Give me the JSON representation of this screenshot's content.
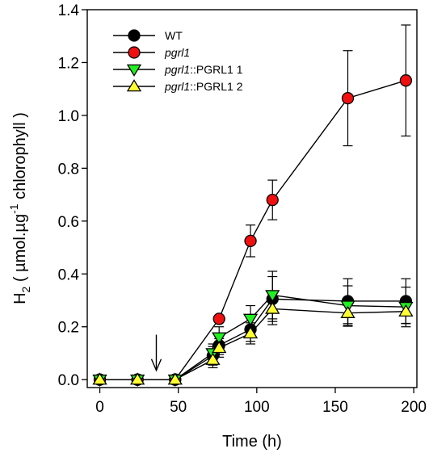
{
  "chart_data": {
    "type": "line",
    "title": "",
    "xlabel": "Time (h)",
    "ylabel": {
      "prefix": "H",
      "prefix_sub": "2",
      "main": " ( µmol.µg",
      "sup": "-1",
      "suffix": " chlorophyll )"
    },
    "xlim": [
      -8,
      202
    ],
    "ylim": [
      -0.03,
      1.4
    ],
    "xticks": [
      0,
      50,
      100,
      150,
      200
    ],
    "xtick_labels": [
      "0",
      "50",
      "100",
      "150",
      "200"
    ],
    "yticks": [
      0.0,
      0.2,
      0.4,
      0.6,
      0.8,
      1.0,
      1.2,
      1.4
    ],
    "ytick_labels": [
      "0.0",
      "0.2",
      "0.4",
      "0.6",
      "0.8",
      "1.0",
      "1.2",
      "1.4"
    ],
    "grid": false,
    "legend_position": "top-left",
    "annotation": {
      "type": "arrow",
      "x": 36,
      "y_from": 0.17,
      "y_to": 0.035
    },
    "series": [
      {
        "name": "WT",
        "name_parts": [
          {
            "text": "WT",
            "italic": false
          }
        ],
        "marker": "circle",
        "color": "#000000",
        "x": [
          0,
          24,
          48,
          72,
          76,
          96,
          110,
          158,
          195
        ],
        "y": [
          0.0,
          0.0,
          0.0,
          0.09,
          0.13,
          0.19,
          0.305,
          0.297,
          0.297
        ],
        "err": [
          0.0,
          0.0,
          0.0,
          0.035,
          0.035,
          0.045,
          0.085,
          0.085,
          0.085
        ]
      },
      {
        "name": "pgrl1",
        "name_parts": [
          {
            "text": "pgrl1",
            "italic": true
          }
        ],
        "marker": "circle",
        "color": "#ee1111",
        "x": [
          0,
          24,
          48,
          76,
          96,
          110,
          158,
          195
        ],
        "y": [
          0.0,
          0.0,
          0.0,
          0.23,
          0.525,
          0.68,
          1.065,
          1.132
        ],
        "err": [
          0.0,
          0.0,
          0.0,
          0.0,
          0.06,
          0.075,
          0.18,
          0.21
        ]
      },
      {
        "name": "pgrl1::PGRL1 1",
        "name_parts": [
          {
            "text": "pgrl1",
            "italic": true
          },
          {
            "text": "::PGRL1 1",
            "italic": false
          }
        ],
        "marker": "triangle-down",
        "color": "#22ee22",
        "x": [
          0,
          24,
          48,
          72,
          76,
          96,
          110,
          158,
          195
        ],
        "y": [
          0.0,
          0.0,
          0.0,
          0.1,
          0.16,
          0.23,
          0.32,
          0.28,
          0.275
        ],
        "err": [
          0.0,
          0.0,
          0.0,
          0.035,
          0.04,
          0.05,
          0.09,
          0.075,
          0.075
        ]
      },
      {
        "name": "pgrl1::PGRL1 2",
        "name_parts": [
          {
            "text": "pgrl1",
            "italic": true
          },
          {
            "text": "::PGRL1 2",
            "italic": false
          }
        ],
        "marker": "triangle-up",
        "color": "#ffff33",
        "x": [
          0,
          24,
          48,
          72,
          76,
          96,
          110,
          158,
          195
        ],
        "y": [
          0.0,
          0.0,
          0.0,
          0.075,
          0.12,
          0.175,
          0.268,
          0.252,
          0.258
        ],
        "err": [
          0.0,
          0.0,
          0.0,
          0.03,
          0.035,
          0.04,
          0.06,
          0.05,
          0.045
        ]
      }
    ]
  }
}
